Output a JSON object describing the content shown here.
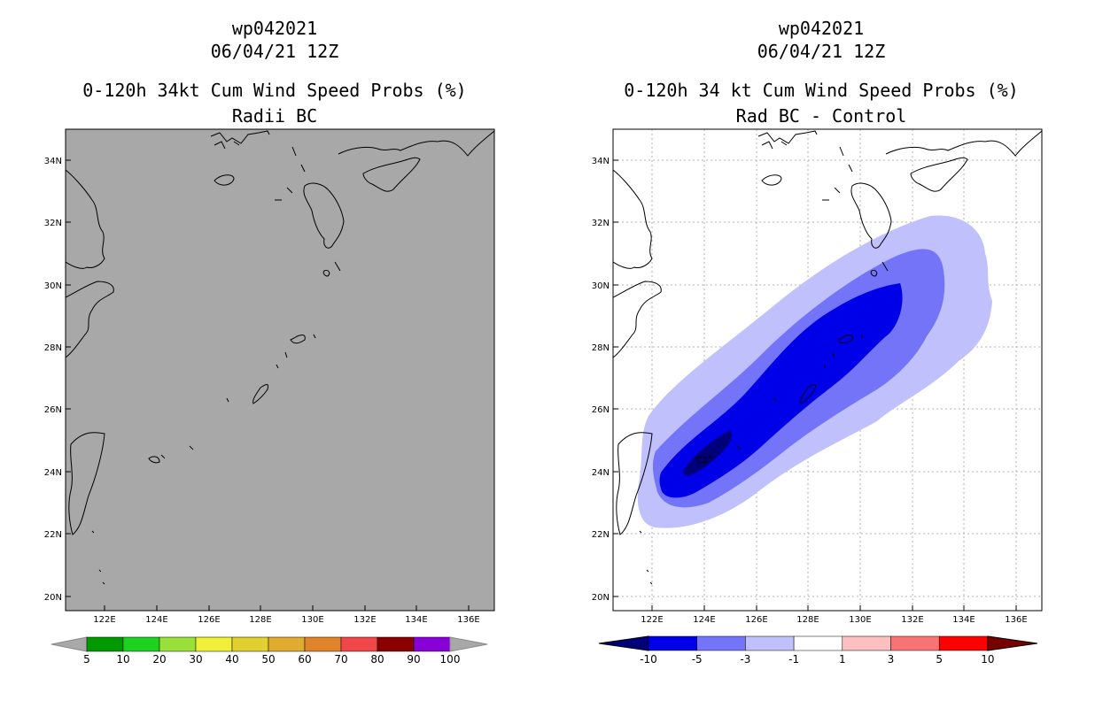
{
  "left_panel": {
    "storm_id": "wp042021",
    "datetime": "06/04/21 12Z",
    "title": "0-120h 34kt Cum Wind Speed Probs (%)",
    "subtitle": "Radii BC",
    "colorbar": {
      "labels": [
        "5",
        "10",
        "20",
        "30",
        "40",
        "50",
        "60",
        "70",
        "80",
        "90",
        "100"
      ],
      "colors": [
        "#009900",
        "#1fd11f",
        "#99e03a",
        "#f0f03a",
        "#e0d030",
        "#e0ac30",
        "#e0842c",
        "#f04848",
        "#8a0000",
        "#8800d8"
      ],
      "arrow_color": "#a8a8a8"
    }
  },
  "right_panel": {
    "storm_id": "wp042021",
    "datetime": "06/04/21 12Z",
    "title": "0-120h 34 kt Cum Wind Speed Probs (%)",
    "subtitle": "Rad BC - Control",
    "colorbar": {
      "labels": [
        "-10",
        "-5",
        "-3",
        "-1",
        "1",
        "3",
        "5",
        "10"
      ],
      "colors": [
        "#0000e8",
        "#7474f8",
        "#c0c0fc",
        "#ffffff",
        "#fcc0c0",
        "#f87474",
        "#ff0000"
      ],
      "arrow_left_color": "#000078",
      "arrow_right_color": "#780000"
    }
  },
  "map": {
    "lon_labels": [
      "122E",
      "124E",
      "126E",
      "128E",
      "130E",
      "132E",
      "134E",
      "136E"
    ],
    "lat_labels": [
      "34N",
      "32N",
      "30N",
      "28N",
      "26N",
      "24N",
      "22N",
      "20N"
    ],
    "land_fill_left": "#a8a8a8",
    "contour_colors": {
      "-10": "#00007a",
      "-5": "#0000e8",
      "-3": "#7474f8",
      "-1": "#c0c0fc"
    }
  }
}
